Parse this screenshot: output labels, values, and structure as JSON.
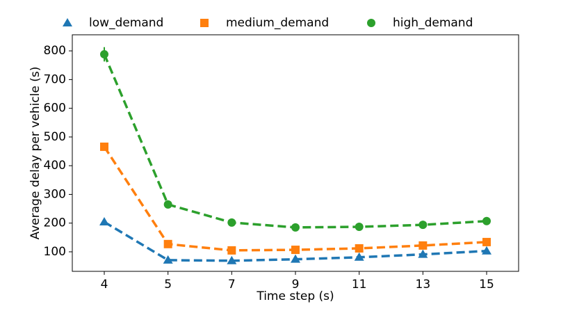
{
  "chart_data": {
    "type": "line",
    "x_label": "Time step (s)",
    "y_label": "Average delay per vehicle (s)",
    "categories": [
      "4",
      "5",
      "7",
      "9",
      "11",
      "13",
      "15"
    ],
    "series": [
      {
        "name": "low_demand",
        "color": "#1f77b4",
        "marker": "triangle",
        "values": [
          204,
          71,
          69,
          74,
          81,
          91,
          103
        ],
        "errors": [
          4,
          2,
          2,
          2,
          2,
          2,
          3
        ]
      },
      {
        "name": "medium_demand",
        "color": "#ff7f0e",
        "marker": "square",
        "values": [
          466,
          127,
          105,
          107,
          112,
          122,
          134
        ],
        "errors": [
          12,
          3,
          3,
          3,
          3,
          3,
          3
        ]
      },
      {
        "name": "high_demand",
        "color": "#2ca02c",
        "marker": "circle",
        "values": [
          788,
          265,
          202,
          185,
          187,
          194,
          207
        ],
        "errors": [
          25,
          4,
          4,
          3,
          3,
          3,
          3
        ]
      }
    ],
    "ylim": [
      32,
      856
    ],
    "yticks": [
      100,
      200,
      300,
      400,
      500,
      600,
      700,
      800
    ],
    "legend": "top",
    "line_style": "dashed"
  }
}
